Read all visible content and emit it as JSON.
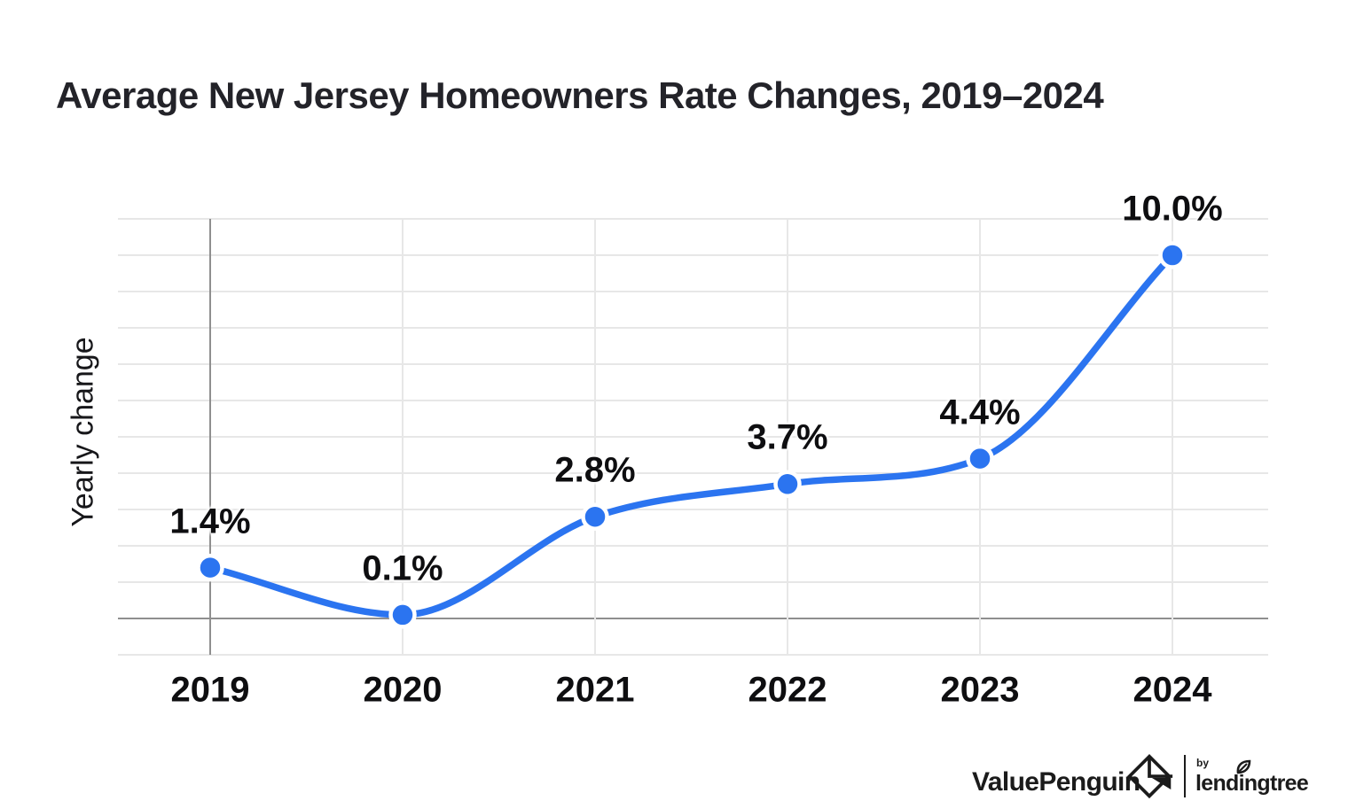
{
  "title": "Average New Jersey Homeowners Rate Changes, 2019–2024",
  "chart_data": {
    "type": "line",
    "title": "Average New Jersey Homeowners Rate Changes, 2019–2024",
    "categories": [
      "2019",
      "2020",
      "2021",
      "2022",
      "2023",
      "2024"
    ],
    "values": [
      1.4,
      0.1,
      2.8,
      3.7,
      4.4,
      10.0
    ],
    "point_labels": [
      "1.4%",
      "0.1%",
      "2.8%",
      "3.7%",
      "4.4%",
      "10.0%"
    ],
    "xlabel": "",
    "ylabel": "Yearly change",
    "ylim": [
      -1,
      11
    ],
    "grid_step": 1,
    "grid": true,
    "legend_position": "none",
    "line_color": "#2b74f0",
    "point_color": "#2b74f0",
    "point_halo_color": "#ffffff",
    "grid_color": "#e7e7e7",
    "axis_line_color": "#8f8f8f",
    "label_color": "#0e0e10"
  },
  "footer": {
    "brand": "ValuePenguin",
    "by": "by",
    "lendingtree": "lendingtree"
  }
}
